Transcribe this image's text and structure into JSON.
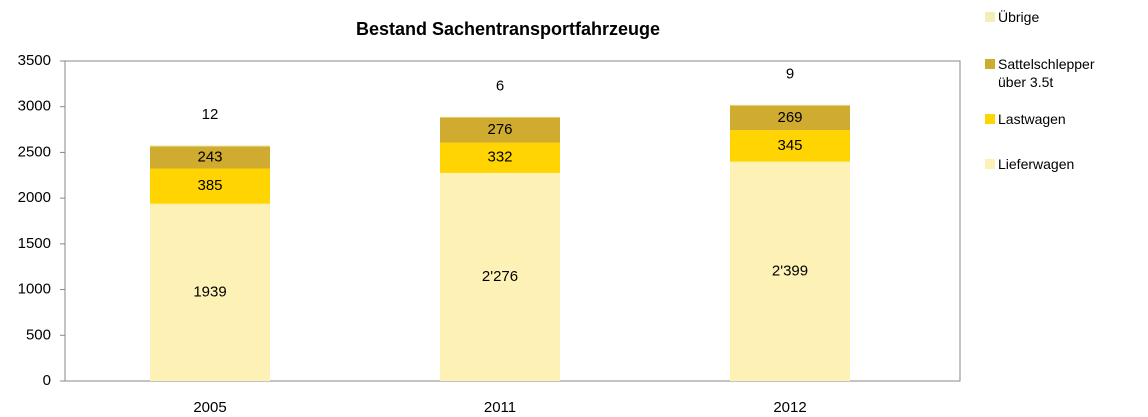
{
  "chart_data": {
    "type": "stacked_bar",
    "title": "Bestand Sachentransportfahrzeuge",
    "categories": [
      "2005",
      "2011",
      "2012"
    ],
    "series": [
      {
        "name": "Lieferwagen",
        "color": "#fdf1b6",
        "values": [
          1939,
          2276,
          2399
        ],
        "value_labels": [
          "1939",
          "2'276",
          "2'399"
        ]
      },
      {
        "name": "Lastwagen",
        "color": "#ffd400",
        "values": [
          385,
          332,
          345
        ]
      },
      {
        "name": "Sattelschlepper über 3.5t",
        "color": "#cfab2f",
        "values": [
          243,
          276,
          269
        ]
      },
      {
        "name": "Übrige",
        "color": "#f3eeb8",
        "values": [
          12,
          6,
          9
        ]
      }
    ],
    "ylim": [
      0,
      3500
    ],
    "yticks": [
      0,
      500,
      1000,
      1500,
      2000,
      2500,
      3000,
      3500
    ],
    "grid": false,
    "legend": "right"
  }
}
